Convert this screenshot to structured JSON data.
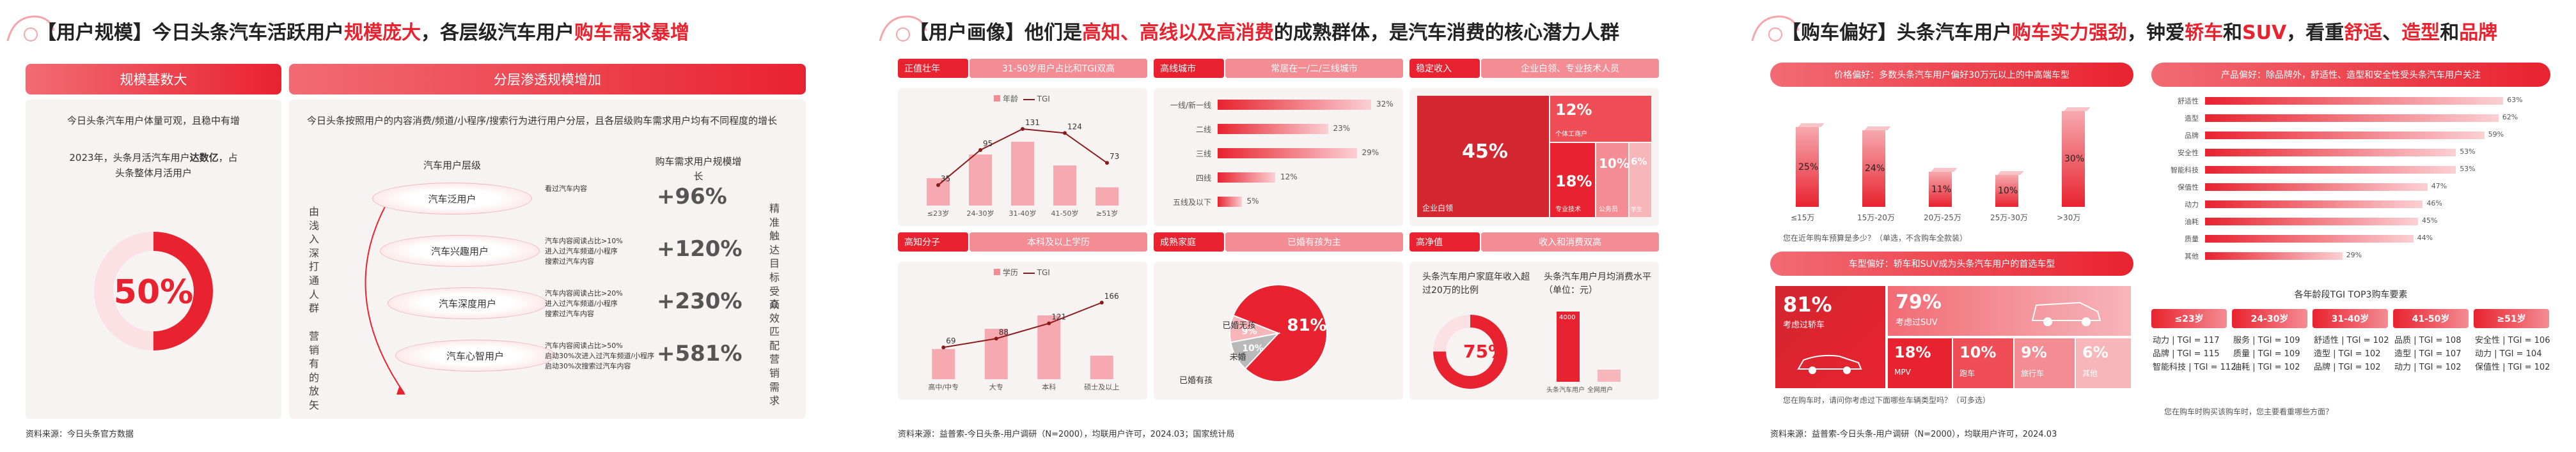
{
  "slide1": {
    "title_a": "【用户规模】今日头条汽车活跃用户",
    "title_b": "规模庞大",
    "title_c": "，各层级汽车用户",
    "title_d": "购车需求暴增",
    "left_header": "规模基数大",
    "right_header": "分层渗透规模增加",
    "left_line1": "今日头条汽车用户体量可观，且稳中有增",
    "left_line2a": "2023年，头条月活汽车用户",
    "left_line2b": "达数亿",
    "left_line2c": "，占",
    "left_line3": "头条整体月活用户",
    "donut_value": "50%",
    "donut_fraction": 0.5,
    "right_intro": "今日头条按照用户的内容消费/频道/小程序/搜索行为进行用户分层，且各层级购车需求用户均有不同程度的增长",
    "col1_header": "汽车用户层级",
    "col2_header": "购车需求用户规模增长",
    "left_vertical": "由浅入深打通人群",
    "left_vertical2": "营销有的放矢",
    "right_vertical": "精准触达目标受众",
    "right_vertical2": "高效匹配营销需求",
    "tiers": [
      {
        "name": "汽车泛用户",
        "bullets": [
          "看过汽车内容"
        ],
        "growth": "+96%"
      },
      {
        "name": "汽车兴趣用户",
        "bullets": [
          "汽车内容阅读占比>10%",
          "进入过汽车频道/小程序",
          "搜索过汽车内容"
        ],
        "growth": "+120%"
      },
      {
        "name": "汽车深度用户",
        "bullets": [
          "汽车内容阅读占比>20%",
          "进入过汽车频道/小程序",
          "搜索过汽车内容"
        ],
        "growth": "+230%"
      },
      {
        "name": "汽车心智用户",
        "bullets": [
          "汽车内容阅读占比>50%",
          "启动30%次进入过汽车频道/小程序",
          "启动30%次搜索过汽车内容"
        ],
        "growth": "+581%"
      }
    ],
    "source": "资料来源：今日头条官方数据"
  },
  "slide2": {
    "title_a": "【用户画像】他们是",
    "title_b": "高知、高线以及高消费",
    "title_c": "的成熟群体，是汽车消费的核心潜力人群",
    "p1_tag": "正值壮年",
    "p1_title": "31-50岁用户占比和TGI双高",
    "p1_legend1": "年龄",
    "p1_legend2": "TGI",
    "p1_categories": [
      "≤23岁",
      "24-30岁",
      "31-40岁",
      "41-50岁",
      "≥51岁"
    ],
    "p1_values": [
      15,
      28,
      35,
      22,
      10
    ],
    "p1_tgi": [
      35,
      95,
      131,
      124,
      73
    ],
    "p2_tag": "高线城市",
    "p2_title": "常居在一/二/三线城市",
    "p2_rows": [
      {
        "label": "一线/新一线",
        "value": "32%",
        "v": 32
      },
      {
        "label": "二线",
        "value": "23%",
        "v": 23
      },
      {
        "label": "三线",
        "value": "29%",
        "v": 29
      },
      {
        "label": "四线",
        "value": "12%",
        "v": 12
      },
      {
        "label": "五线及以下",
        "value": "5%",
        "v": 5
      }
    ],
    "p3_tag": "稳定收入",
    "p3_title": "企业白领、专业技术人员",
    "p3_big": "45%",
    "p3_big_label": "企业白领",
    "p3_mid": "18%",
    "p3_mid_label": "专业技术",
    "p3_small1": "12%",
    "p3_small1_label": "个体工商户",
    "p3_small2": "10%",
    "p3_small2_label": "公务员",
    "p3_small3": "6%",
    "p3_small3_label": "学生",
    "p4_tag": "高知分子",
    "p4_title": "本科及以上学历",
    "p4_legend1": "学历",
    "p4_legend2": "TGI",
    "p4_categories": [
      "高中/中专",
      "大专",
      "本科",
      "硕士及以上"
    ],
    "p4_values": [
      18,
      30,
      38,
      14
    ],
    "p4_tgi": [
      69,
      88,
      121,
      166
    ],
    "p5_tag": "成熟家庭",
    "p5_title": "已婚有孩为主",
    "p5_slices": [
      {
        "label": "已婚有孩",
        "value": "81%",
        "v": 81
      },
      {
        "label": "未婚",
        "value": "10%",
        "v": 10
      },
      {
        "label": "已婚无孩",
        "value": "9%",
        "v": 9
      }
    ],
    "p6_tag": "高净值",
    "p6_title": "收入和消费双高",
    "p6_text": "头条汽车用户家庭年收入超过20万的比例",
    "p6_donut": "75%",
    "p6_donut_fraction": 0.75,
    "p6_right_text": "头条汽车用户月均消费水平（单位：元）",
    "p6_bars": [
      {
        "label": "头条汽车用户",
        "value": "4000",
        "v": 4000
      },
      {
        "label": "全网用户",
        "value": "",
        "v": 700
      }
    ],
    "source": "资料来源：益普索-今日头条-用户调研（N=2000），均联用户许可，2024.03；国家统计局"
  },
  "slide3": {
    "title_a": "【购车偏好】头条汽车用户",
    "title_b": "购车实力强劲",
    "title_c": "，钟爱",
    "title_d": "轿车",
    "title_e": "和",
    "title_f": "SUV",
    "title_g": "，看重",
    "title_h": "舒适",
    "title_i": "、",
    "title_j": "造型",
    "title_k": "和",
    "title_l": "品牌",
    "price_header": "价格偏好：多数头条汽车用户偏好30万元以上的中高端车型",
    "price_categories": [
      "≤15万",
      "15万-20万",
      "20万-25万",
      "25万-30万",
      ">30万"
    ],
    "price_values": [
      25,
      24,
      11,
      10,
      30
    ],
    "price_labels": [
      "25%",
      "24%",
      "11%",
      "10%",
      "30%"
    ],
    "price_note": "您在近年购车预算是多少？（单选，不含购车全款装）",
    "type_header": "车型偏好：轿车和SUV成为头条汽车用户的首选车型",
    "type_big": "81%",
    "type_big_label": "考虑过轿车",
    "type_suv": "79%",
    "type_suv_label": "考虑过SUV",
    "type_small": [
      {
        "value": "18%",
        "label": "MPV"
      },
      {
        "value": "10%",
        "label": "跑车"
      },
      {
        "value": "9%",
        "label": "旅行车"
      },
      {
        "value": "6%",
        "label": "其他"
      }
    ],
    "type_note": "您在购车时，请问你考虑过下面哪些车辆类型吗？（可多选）",
    "prod_header": "产品偏好：除品牌外，舒适性、造型和安全性受头条汽车用户关注",
    "prod_rows": [
      {
        "label": "舒适性",
        "value": "63%",
        "v": 63
      },
      {
        "label": "造型",
        "value": "62%",
        "v": 62
      },
      {
        "label": "品牌",
        "value": "59%",
        "v": 59
      },
      {
        "label": "安全性",
        "value": "53%",
        "v": 53
      },
      {
        "label": "智能科技",
        "value": "53%",
        "v": 53
      },
      {
        "label": "保值性",
        "value": "47%",
        "v": 47
      },
      {
        "label": "动力",
        "value": "46%",
        "v": 46
      },
      {
        "label": "油耗",
        "value": "45%",
        "v": 45
      },
      {
        "label": "质量",
        "value": "44%",
        "v": 44
      },
      {
        "label": "其他",
        "value": "29%",
        "v": 29
      }
    ],
    "tgi_title": "各年龄段TGI TOP3购车要素",
    "tgi_groups": [
      {
        "age": "≤23岁",
        "rows": [
          "动力 | TGI = 117",
          "品牌 | TGI = 115",
          "智能科技 | TGI = 112"
        ]
      },
      {
        "age": "24-30岁",
        "rows": [
          "服务 | TGI = 109",
          "质量 | TGI = 109",
          "油耗 | TGI = 102"
        ]
      },
      {
        "age": "31-40岁",
        "rows": [
          "舒适性 | TGI = 102",
          "造型 | TGI = 102",
          "品牌 | TGI = 102"
        ]
      },
      {
        "age": "41-50岁",
        "rows": [
          "品质 | TGI = 108",
          "造型 | TGI = 107",
          "动力 | TGI = 102"
        ]
      },
      {
        "age": "≥51岁",
        "rows": [
          "安全性 | TGI = 106",
          "动力 | TGI = 104",
          "保值性 | TGI = 102"
        ]
      }
    ],
    "tgi_note": "您在购车时购买该购车时，您主要看重哪些方面？",
    "source": "资料来源：益普索-今日头条-用户调研（N=2000），均联用户许可，2024.03"
  },
  "colors": {
    "accent": "#e8232f",
    "light": "#f48c93",
    "pale": "#fbd0d3"
  }
}
